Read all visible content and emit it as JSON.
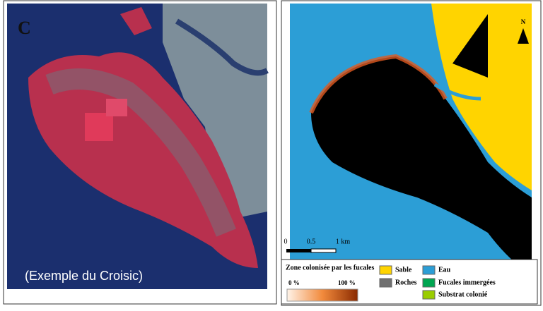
{
  "left_panel": {
    "label": "C",
    "caption": "(Exemple du Croisic)"
  },
  "right_panel": {
    "north": "N",
    "scale": {
      "ticks": [
        "0",
        "0.5",
        "1 km"
      ]
    },
    "legend": {
      "title": "Zone colonisée par les fucales",
      "gradient": {
        "min": "0 %",
        "max": "100 %"
      },
      "items": [
        {
          "label": "Sable",
          "color": "#ffd400"
        },
        {
          "label": "Eau",
          "color": "#2c9ed6"
        },
        {
          "label": "Roches",
          "color": "#707070"
        },
        {
          "label": "Fucales immergées",
          "color": "#00a651"
        },
        {
          "label": "Substrat colonié",
          "color": "#9acd00"
        }
      ]
    }
  }
}
